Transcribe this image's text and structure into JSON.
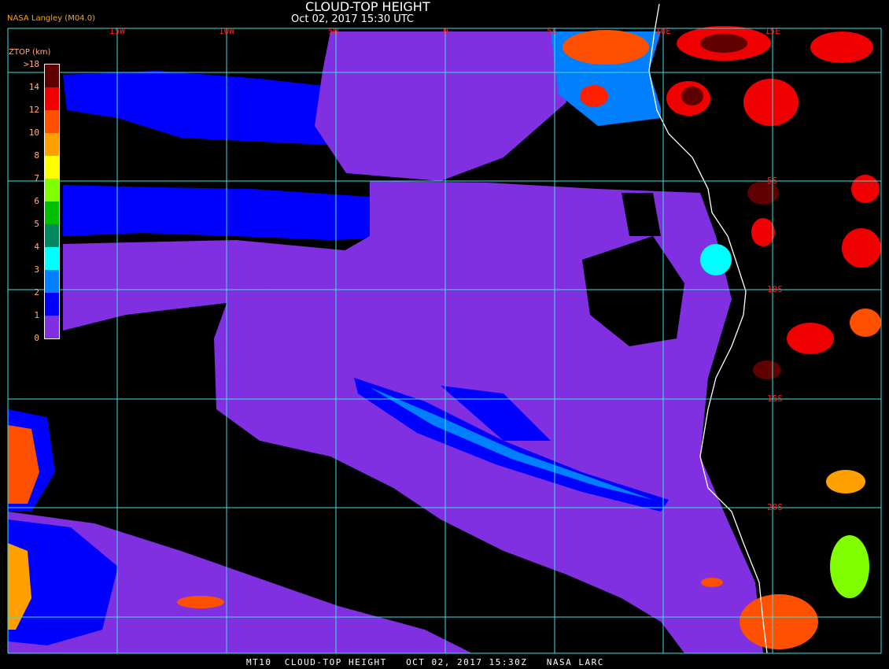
{
  "header": {
    "title": "CLOUD-TOP HEIGHT",
    "subtitle": "Oct 02, 2017 15:30 UTC",
    "producer": "NASA Langley (M04.0)"
  },
  "map": {
    "longitude_labels": [
      "15W",
      "10W",
      "5W",
      "0",
      "5E",
      "10E",
      "15E"
    ],
    "latitude_labels": [
      "5S",
      "10S",
      "15S",
      "20S"
    ],
    "grid_color": "#40e0e0",
    "label_color": "#ff2020",
    "coastline_color": "#ffffff"
  },
  "legend": {
    "title": "ZTOP (km)",
    "labels": [
      ">18",
      "14",
      "12",
      "10",
      "8",
      "7",
      "6",
      "5",
      "4",
      "3",
      "2",
      "1",
      "0"
    ],
    "colors": [
      "#600000",
      "#f00000",
      "#ff5000",
      "#ffa000",
      "#ffff00",
      "#80ff00",
      "#00c000",
      "#008860",
      "#00ffff",
      "#0080ff",
      "#0000ff",
      "#8030e0"
    ]
  },
  "footer": {
    "text": "MT10  CLOUD-TOP HEIGHT   OCT 02, 2017 15:30Z   NASA LARC"
  }
}
